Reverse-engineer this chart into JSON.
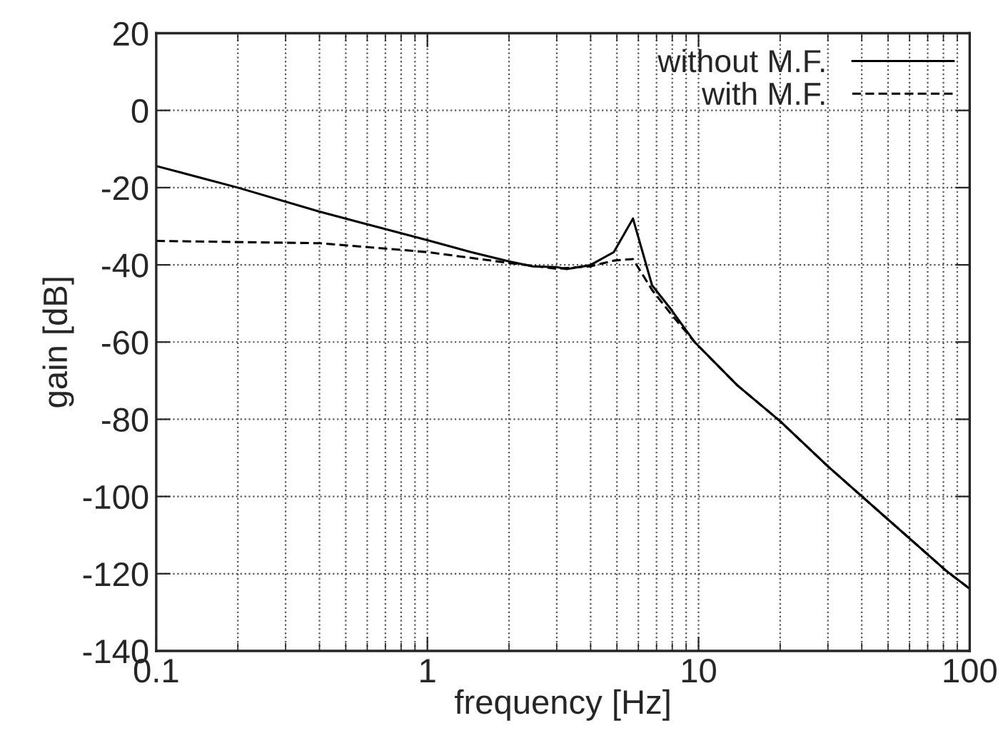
{
  "chart_data": {
    "type": "line",
    "xlabel": "frequency [Hz]",
    "ylabel": "gain [dB]",
    "log": "x",
    "xlim": [
      0.1,
      100
    ],
    "xticks": [
      0.1,
      1,
      10,
      100
    ],
    "ylim": [
      -140,
      20
    ],
    "yticks": [
      -140,
      -120,
      -100,
      -80,
      -60,
      -40,
      -20,
      0,
      20
    ],
    "grid": true,
    "legend": "top right",
    "marker": "none",
    "series": [
      {
        "name": "without M.F.",
        "color": "#000000",
        "line_style": "solid",
        "x": [
          0.1,
          0.2,
          0.4,
          0.6,
          1.0,
          1.45,
          2.0,
          2.45,
          3.0,
          3.26,
          3.98,
          4.87,
          5.73,
          6.74,
          7.91,
          9.7,
          13.9,
          20,
          30,
          49.7,
          82.4,
          100
        ],
        "values": [
          -14.4,
          -20,
          -26.2,
          -29.5,
          -33.6,
          -36.7,
          -39.1,
          -40.4,
          -40.6,
          -41.1,
          -40.1,
          -36.7,
          -28,
          -45.3,
          -51.5,
          -60.1,
          -71.2,
          -80.5,
          -92.2,
          -105.8,
          -119.4,
          -123.9
        ]
      },
      {
        "name": "with M.F.",
        "color": "#000000",
        "line_style": "dashed",
        "x": [
          0.1,
          0.4,
          1.0,
          2.0,
          3.0,
          3.98,
          4.87,
          5.73,
          6.74,
          7.91,
          9.7,
          13.9,
          20,
          30,
          49.7,
          82.4,
          100
        ],
        "values": [
          -33.8,
          -34.4,
          -36.7,
          -39.5,
          -41,
          -40.4,
          -38.9,
          -38.5,
          -46.5,
          -52.7,
          -60.1,
          -71.2,
          -80.5,
          -92.2,
          -105.8,
          -119.4,
          -123.9
        ]
      }
    ]
  }
}
